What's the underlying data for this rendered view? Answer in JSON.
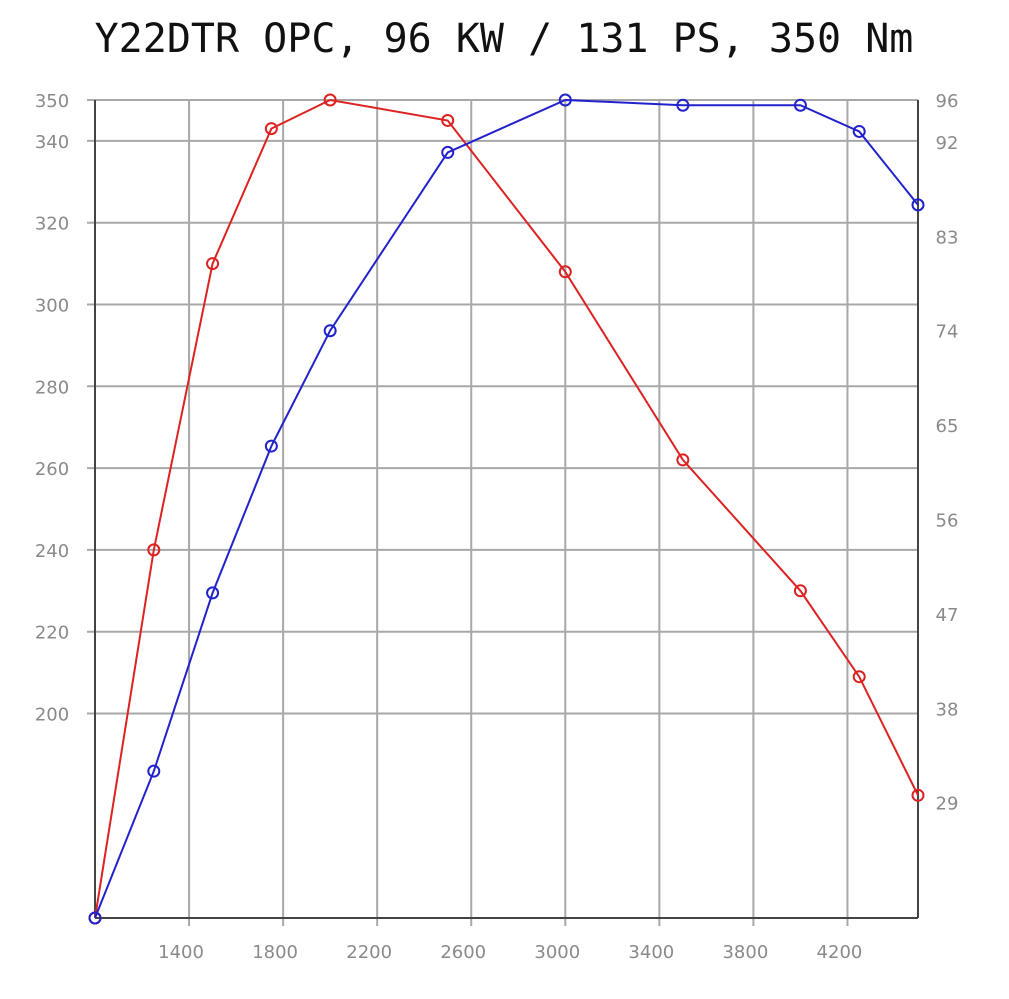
{
  "chart_data": {
    "type": "line",
    "title": "Y22DTR OPC, 96 KW / 131 PS, 350 Nm",
    "x_ticks": [
      1400,
      1800,
      2200,
      2600,
      3000,
      3400,
      3800,
      4200
    ],
    "xlim": [
      1000,
      4500
    ],
    "grid": true,
    "y_left": {
      "ticks": [
        200,
        220,
        240,
        260,
        280,
        300,
        320,
        340,
        350
      ],
      "ylim": [
        150,
        350
      ]
    },
    "y_right": {
      "ticks": [
        29,
        38,
        47,
        56,
        65,
        74,
        83,
        92,
        96
      ],
      "ylim": [
        18,
        96
      ]
    },
    "series": [
      {
        "color": "#dd2222",
        "axis": "left",
        "x": [
          1000,
          1250,
          1500,
          1750,
          2000,
          2500,
          3000,
          3500,
          4000,
          4250,
          4500
        ],
        "y": [
          150,
          240,
          310,
          343,
          350,
          345,
          308,
          262,
          230,
          209,
          180
        ]
      },
      {
        "color": "#2222cc",
        "axis": "right",
        "x": [
          1000,
          1250,
          1500,
          1750,
          2000,
          2500,
          3000,
          3500,
          4000,
          4250,
          4500
        ],
        "y": [
          18,
          32,
          49,
          63,
          74,
          91,
          96,
          95.5,
          95.5,
          93,
          86
        ]
      }
    ]
  }
}
